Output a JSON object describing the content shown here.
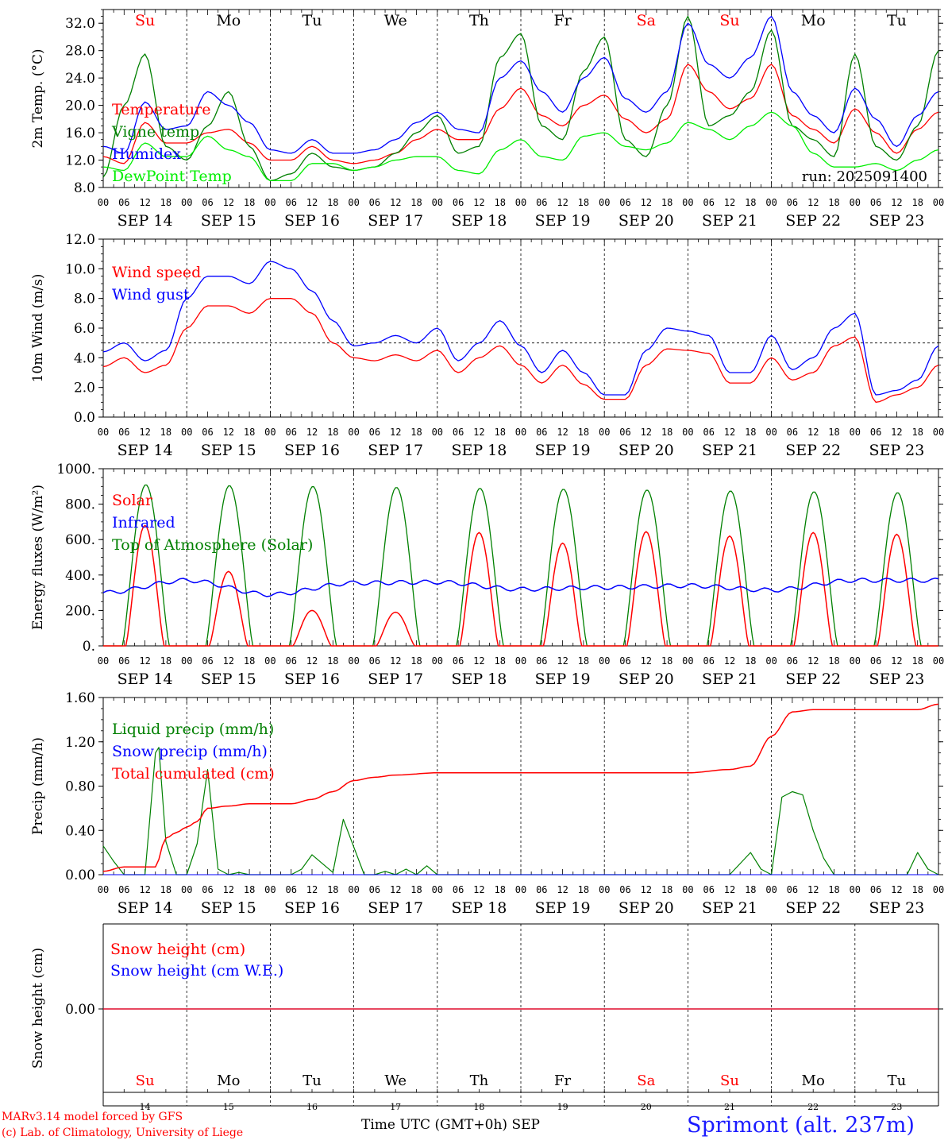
{
  "run_label": "run: 2025091400",
  "days": [
    {
      "abbr": "Su",
      "date": "SEP 14",
      "num": "14",
      "weekend": true
    },
    {
      "abbr": "Mo",
      "date": "SEP 15",
      "num": "15",
      "weekend": false
    },
    {
      "abbr": "Tu",
      "date": "SEP 16",
      "num": "16",
      "weekend": false
    },
    {
      "abbr": "We",
      "date": "SEP 17",
      "num": "17",
      "weekend": false
    },
    {
      "abbr": "Th",
      "date": "SEP 18",
      "num": "18",
      "weekend": false
    },
    {
      "abbr": "Fr",
      "date": "SEP 19",
      "num": "19",
      "weekend": false
    },
    {
      "abbr": "Sa",
      "date": "SEP 20",
      "num": "20",
      "weekend": true
    },
    {
      "abbr": "Su",
      "date": "SEP 21",
      "num": "21",
      "weekend": true
    },
    {
      "abbr": "Mo",
      "date": "SEP 22",
      "num": "22",
      "weekend": false
    },
    {
      "abbr": "Tu",
      "date": "SEP 23",
      "num": "23",
      "weekend": false
    }
  ],
  "hour_ticks": [
    "00",
    "06",
    "12",
    "18"
  ],
  "footer": {
    "model": "MARv3.14 model forced by GFS",
    "lab": "(c) Lab. of Climatology, University of Liege",
    "xlabel": "Time UTC (GMT+0h) SEP",
    "station": "Sprimont (alt. 237m)"
  },
  "chart_data": [
    {
      "type": "line",
      "ylabel": "2m Temp. (°C)",
      "ylim": [
        8,
        34
      ],
      "yticks": [
        "8.0",
        "12.0",
        "16.0",
        "20.0",
        "24.0",
        "28.0",
        "32.0"
      ],
      "ytick_values": [
        8,
        12,
        16,
        20,
        24,
        28,
        32
      ],
      "x_hours": [
        0,
        6,
        12,
        18,
        24,
        30,
        36,
        42,
        48,
        54,
        60,
        66,
        72,
        78,
        84,
        90,
        96,
        102,
        108,
        114,
        120,
        126,
        132,
        138,
        144,
        150,
        156,
        162,
        168,
        174,
        180,
        186,
        192,
        198,
        204,
        210,
        216,
        222,
        228,
        234,
        240
      ],
      "series": [
        {
          "name": "Temperature",
          "color": "#ff0000",
          "values": [
            12.5,
            11.5,
            17.5,
            14.5,
            14.5,
            16.0,
            16.5,
            14.5,
            12.0,
            12.0,
            14.0,
            12.0,
            11.5,
            12.0,
            13.0,
            15.0,
            16.5,
            15.0,
            15.0,
            19.5,
            22.5,
            18.5,
            17.0,
            20.0,
            21.5,
            18.0,
            16.0,
            18.0,
            26.0,
            22.0,
            19.5,
            21.0,
            26.0,
            18.5,
            16.5,
            14.5,
            19.5,
            16.0,
            13.0,
            16.5,
            19.0
          ]
        },
        {
          "name": "Vigne temp",
          "color": "#008000",
          "values": [
            9.5,
            20.0,
            27.5,
            14.0,
            12.0,
            17.0,
            22.0,
            14.0,
            9.0,
            10.0,
            13.0,
            11.0,
            10.5,
            11.0,
            13.0,
            16.0,
            18.5,
            13.0,
            14.0,
            27.0,
            30.5,
            17.0,
            15.0,
            25.0,
            30.0,
            15.0,
            12.5,
            20.0,
            33.0,
            17.0,
            18.5,
            22.0,
            31.0,
            17.0,
            15.0,
            12.5,
            27.5,
            14.0,
            12.0,
            17.0,
            28.0
          ]
        },
        {
          "name": "Humidex",
          "color": "#0000ff",
          "values": [
            14.0,
            13.0,
            20.5,
            16.5,
            17.0,
            22.0,
            20.0,
            17.5,
            13.5,
            13.0,
            15.0,
            13.0,
            13.0,
            13.5,
            15.0,
            17.5,
            19.0,
            16.5,
            16.0,
            24.0,
            26.5,
            22.0,
            19.0,
            24.0,
            27.0,
            21.0,
            19.0,
            22.0,
            32.0,
            26.0,
            24.0,
            27.0,
            33.0,
            22.0,
            18.5,
            16.0,
            22.5,
            18.0,
            14.0,
            18.5,
            22.0
          ]
        },
        {
          "name": "DewPoint Temp",
          "color": "#00ee00",
          "values": [
            11.0,
            10.5,
            14.5,
            12.5,
            12.5,
            15.5,
            13.5,
            12.5,
            9.0,
            9.0,
            11.5,
            11.5,
            10.5,
            11.0,
            12.0,
            12.5,
            12.5,
            10.5,
            10.0,
            13.5,
            15.0,
            12.5,
            12.0,
            15.5,
            16.0,
            14.0,
            13.5,
            14.5,
            17.5,
            16.5,
            15.0,
            17.0,
            19.0,
            17.0,
            13.0,
            11.0,
            11.0,
            11.5,
            10.5,
            12.0,
            13.5
          ]
        }
      ]
    },
    {
      "type": "line",
      "ylabel": "10m Wind (m/s)",
      "ylim": [
        0,
        12
      ],
      "yticks": [
        "0.0",
        "2.0",
        "4.0",
        "6.0",
        "8.0",
        "10.0",
        "12.0"
      ],
      "ytick_values": [
        0,
        2,
        4,
        6,
        8,
        10,
        12
      ],
      "reference_line": 5,
      "x_hours": [
        0,
        6,
        12,
        18,
        24,
        30,
        36,
        42,
        48,
        54,
        60,
        66,
        72,
        78,
        84,
        90,
        96,
        102,
        108,
        114,
        120,
        126,
        132,
        138,
        144,
        150,
        156,
        162,
        168,
        174,
        180,
        186,
        192,
        198,
        204,
        210,
        216,
        222,
        228,
        234,
        240
      ],
      "series": [
        {
          "name": "Wind speed",
          "color": "#ff0000",
          "values": [
            3.4,
            4.0,
            3.0,
            3.5,
            6.0,
            7.5,
            7.5,
            7.0,
            8.0,
            8.0,
            7.0,
            5.0,
            4.0,
            3.8,
            4.2,
            3.8,
            4.5,
            3.0,
            4.0,
            4.8,
            3.5,
            2.3,
            3.5,
            2.2,
            1.2,
            1.2,
            3.5,
            4.6,
            4.5,
            4.3,
            2.3,
            2.3,
            4.0,
            2.5,
            3.0,
            4.8,
            5.4,
            1.0,
            1.5,
            2.0,
            3.5
          ]
        },
        {
          "name": "Wind gust",
          "color": "#0000ff",
          "values": [
            4.4,
            5.0,
            3.8,
            4.5,
            8.0,
            9.5,
            9.5,
            9.0,
            10.5,
            10.0,
            8.5,
            6.5,
            4.8,
            5.0,
            5.5,
            5.0,
            6.0,
            3.8,
            5.0,
            6.5,
            4.8,
            3.0,
            4.5,
            3.0,
            1.5,
            1.5,
            4.5,
            6.0,
            5.8,
            5.5,
            3.0,
            3.0,
            5.5,
            3.2,
            4.0,
            6.0,
            7.0,
            1.5,
            1.8,
            2.5,
            4.8
          ]
        }
      ]
    },
    {
      "type": "line",
      "ylabel": "Energy fluxes (W/m²)",
      "ylim": [
        0,
        1000
      ],
      "yticks": [
        "0.",
        "200.",
        "400.",
        "600.",
        "800.",
        "1000."
      ],
      "ytick_values": [
        0,
        200,
        400,
        600,
        800,
        1000
      ],
      "series": [
        {
          "name": "Solar",
          "color": "#ff0000",
          "day_peaks": [
            680,
            420,
            200,
            190,
            640,
            580,
            645,
            620,
            640,
            630
          ]
        },
        {
          "name": "Infrared",
          "color": "#0000ff",
          "daily_values": [
            300,
            370,
            290,
            355,
            360,
            320,
            330,
            340,
            315,
            370
          ]
        },
        {
          "name": "Top of Atmosphere (Solar)",
          "color": "#008000",
          "day_peaks": [
            910,
            905,
            900,
            895,
            890,
            885,
            880,
            875,
            870,
            865
          ]
        }
      ]
    },
    {
      "type": "line",
      "ylabel": "Precip (mm/h)",
      "ylim": [
        0,
        1.6
      ],
      "yticks": [
        "0.00",
        "0.40",
        "0.80",
        "1.20",
        "1.60"
      ],
      "ytick_values": [
        0,
        0.4,
        0.8,
        1.2,
        1.6
      ],
      "series": [
        {
          "name": "Liquid precip (mm/h)",
          "color": "#008000",
          "x_hours": [
            0,
            3,
            6,
            9,
            12,
            15,
            16,
            18,
            21,
            24,
            27,
            30,
            33,
            36,
            39,
            42,
            48,
            54,
            57,
            60,
            63,
            66,
            69,
            72,
            75,
            78,
            81,
            84,
            87,
            90,
            93,
            96,
            102,
            120,
            168,
            180,
            183,
            186,
            189,
            192,
            195,
            198,
            201,
            204,
            207,
            210,
            228,
            231,
            234,
            237,
            240
          ],
          "values": [
            0.26,
            0.12,
            0,
            0,
            0,
            1.1,
            1.15,
            0.3,
            0,
            0,
            0.28,
            0.95,
            0.05,
            0,
            0.02,
            0,
            0,
            0,
            0.05,
            0.18,
            0.1,
            0.02,
            0.5,
            0.25,
            0,
            0,
            0.03,
            0,
            0.05,
            0,
            0.08,
            0,
            0,
            0,
            0,
            0,
            0.1,
            0.2,
            0.05,
            0,
            0.7,
            0.75,
            0.72,
            0.4,
            0.15,
            0,
            0,
            0,
            0.2,
            0.05,
            0
          ]
        },
        {
          "name": "Snow precip (mm/h)",
          "color": "#0000ff",
          "x_hours": [
            0,
            240
          ],
          "values": [
            0,
            0
          ]
        },
        {
          "name": "Total cumulated (cm)",
          "color": "#ff0000",
          "x_hours": [
            0,
            6,
            12,
            15,
            18,
            21,
            24,
            27,
            30,
            36,
            42,
            48,
            54,
            60,
            66,
            72,
            78,
            84,
            96,
            120,
            168,
            180,
            186,
            192,
            198,
            204,
            210,
            228,
            234,
            240
          ],
          "values": [
            0.03,
            0.07,
            0.07,
            0.07,
            0.33,
            0.38,
            0.43,
            0.48,
            0.6,
            0.62,
            0.64,
            0.64,
            0.64,
            0.68,
            0.75,
            0.85,
            0.88,
            0.9,
            0.92,
            0.92,
            0.92,
            0.95,
            0.98,
            1.25,
            1.47,
            1.49,
            1.49,
            1.49,
            1.49,
            1.54
          ]
        }
      ]
    },
    {
      "type": "line",
      "ylabel": "Snow height (cm)",
      "yticks": [
        "0.00"
      ],
      "ytick_values": [
        0
      ],
      "series": [
        {
          "name": "Snow height (cm)",
          "color": "#ff0000",
          "x_hours": [
            0,
            240
          ],
          "values": [
            0,
            0
          ]
        },
        {
          "name": "Snow height (cm W.E.)",
          "color": "#0000ff",
          "x_hours": [
            0,
            240
          ],
          "values": [
            0,
            0
          ]
        }
      ]
    }
  ]
}
